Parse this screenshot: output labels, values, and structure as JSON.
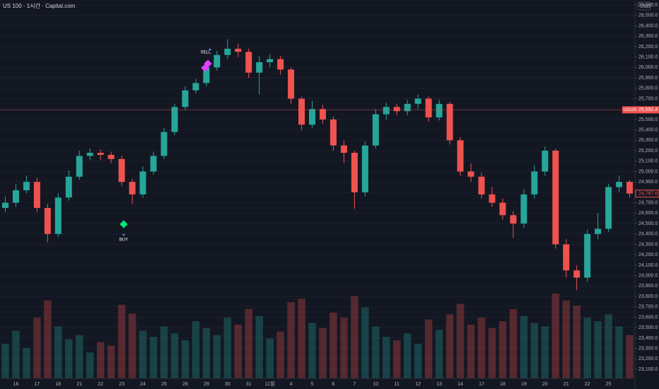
{
  "header": {
    "title": "US 100 · 1시간 · Capital.com",
    "currency": "USD"
  },
  "chart_data": {
    "type": "candlestick",
    "categories": [
      null,
      "16",
      null,
      "17",
      null,
      "18",
      null,
      "21",
      null,
      "22",
      null,
      "23",
      null,
      "24",
      null,
      "25",
      null,
      "28",
      null,
      "29",
      null,
      "30",
      null,
      "31",
      null,
      "11월",
      null,
      "4",
      null,
      "5",
      null,
      "6",
      null,
      "7",
      null,
      "10",
      null,
      "11",
      null,
      "12",
      null,
      "13",
      null,
      "14",
      null,
      "17",
      null,
      "18",
      null,
      "19",
      null,
      "20",
      null,
      "21",
      null,
      "22",
      null,
      "25",
      null,
      null
    ],
    "open": [
      24650,
      24700,
      24820,
      24900,
      24650,
      24400,
      24750,
      24950,
      25150,
      25180,
      25160,
      25120,
      24900,
      24780,
      25000,
      25150,
      25380,
      25620,
      25780,
      25850,
      26000,
      26120,
      26180,
      26150,
      25950,
      26050,
      26080,
      25980,
      25700,
      25450,
      25600,
      25500,
      25250,
      25180,
      24800,
      25250,
      25550,
      25620,
      25580,
      25650,
      25700,
      25520,
      25650,
      25300,
      25000,
      24950,
      24780,
      24700,
      24580,
      24500,
      24780,
      25000,
      25200,
      24300,
      24050,
      23980,
      24400,
      24450,
      24850,
      24900
    ],
    "high": [
      24760,
      24880,
      24960,
      24940,
      24690,
      24790,
      25010,
      25200,
      25220,
      25210,
      25190,
      25150,
      24930,
      25050,
      25190,
      25420,
      25650,
      25820,
      25890,
      26060,
      26160,
      26270,
      26230,
      26180,
      26110,
      26130,
      26110,
      26000,
      25720,
      25680,
      25640,
      25530,
      25300,
      25200,
      25290,
      25600,
      25660,
      25650,
      25690,
      25740,
      25720,
      25690,
      25670,
      25330,
      25080,
      24990,
      24850,
      24740,
      24620,
      24830,
      25060,
      25240,
      25220,
      24350,
      24100,
      24440,
      24600,
      24880,
      24960,
      24920
    ],
    "low": [
      24610,
      24660,
      24790,
      24610,
      24320,
      24370,
      24720,
      24920,
      25110,
      25110,
      25080,
      24860,
      24690,
      24750,
      24970,
      25120,
      25350,
      25590,
      25750,
      25820,
      25970,
      26080,
      26100,
      25900,
      25740,
      26000,
      25930,
      25650,
      25400,
      25420,
      25460,
      25200,
      25080,
      24640,
      24760,
      25220,
      25500,
      25540,
      25540,
      25600,
      25480,
      25490,
      25260,
      24960,
      24900,
      24740,
      24660,
      24540,
      24360,
      24460,
      24740,
      24960,
      24260,
      23980,
      23860,
      23940,
      24350,
      24420,
      24800,
      24750
    ],
    "close": [
      24700,
      24820,
      24900,
      24650,
      24400,
      24750,
      24950,
      25150,
      25180,
      25160,
      25120,
      24900,
      24780,
      25000,
      25150,
      25380,
      25620,
      25780,
      25850,
      26000,
      26120,
      26180,
      26150,
      25950,
      26050,
      26080,
      25980,
      25700,
      25450,
      25600,
      25500,
      25250,
      25180,
      24800,
      25250,
      25550,
      25620,
      25580,
      25650,
      25700,
      25520,
      25650,
      25300,
      25000,
      24950,
      24780,
      24700,
      24580,
      24500,
      24780,
      25000,
      25200,
      24300,
      24050,
      23980,
      24400,
      24450,
      24850,
      24900,
      24787.6
    ],
    "volume": [
      40,
      55,
      35,
      70,
      90,
      60,
      45,
      50,
      30,
      42,
      38,
      85,
      75,
      55,
      48,
      60,
      52,
      44,
      66,
      58,
      50,
      70,
      62,
      80,
      72,
      46,
      54,
      88,
      92,
      64,
      58,
      76,
      70,
      95,
      82,
      60,
      48,
      44,
      52,
      40,
      68,
      56,
      74,
      86,
      62,
      70,
      58,
      66,
      80,
      72,
      64,
      60,
      98,
      90,
      84,
      70,
      66,
      74,
      60,
      50
    ],
    "up_color": "#26a69a",
    "down_color": "#ef5350",
    "ylim": [
      23012,
      26648
    ],
    "yticks": [
      {
        "value": 23100,
        "label": "23,100.0"
      },
      {
        "value": 23200,
        "label": "23,200.0"
      },
      {
        "value": 23300,
        "label": "23,300.0"
      },
      {
        "value": 23400,
        "label": "23,400.0"
      },
      {
        "value": 23500,
        "label": "23,500.0"
      },
      {
        "value": 23600,
        "label": "23,600.0"
      },
      {
        "value": 23700,
        "label": "23,700.0"
      },
      {
        "value": 23800,
        "label": "23,800.0"
      },
      {
        "value": 23900,
        "label": "23,900.0"
      },
      {
        "value": 24000,
        "label": "24,000.0"
      },
      {
        "value": 24100,
        "label": "24,100.0"
      },
      {
        "value": 24200,
        "label": "24,200.0"
      },
      {
        "value": 24300,
        "label": "24,300.0"
      },
      {
        "value": 24400,
        "label": "24,400.0"
      },
      {
        "value": 24500,
        "label": "24,500.0"
      },
      {
        "value": 24600,
        "label": "24,600.0"
      },
      {
        "value": 24700,
        "label": "24,700.0"
      },
      {
        "value": 24800,
        "label": "24,800.0"
      },
      {
        "value": 24900,
        "label": "24,900.0"
      },
      {
        "value": 25000,
        "label": "25,000.0"
      },
      {
        "value": 25100,
        "label": "25,100.0"
      },
      {
        "value": 25200,
        "label": "25,200.0"
      },
      {
        "value": 25300,
        "label": "25,300.0"
      },
      {
        "value": 25400,
        "label": "25,400.0"
      },
      {
        "value": 25500,
        "label": "25,500.0"
      },
      {
        "value": 25600,
        "label": "25,600.0"
      },
      {
        "value": 25700,
        "label": "25,700.0"
      },
      {
        "value": 25800,
        "label": "25,800.0"
      },
      {
        "value": 25900,
        "label": "25,900.0"
      },
      {
        "value": 26000,
        "label": "26,000.0"
      },
      {
        "value": 26100,
        "label": "26,100.0"
      },
      {
        "value": 26200,
        "label": "26,200.0"
      },
      {
        "value": 26300,
        "label": "26,300.0"
      },
      {
        "value": 26400,
        "label": "26,400.0"
      },
      {
        "value": 26500,
        "label": "26,500.0"
      },
      {
        "value": 26600,
        "label": "26,600.0"
      }
    ],
    "price_line": {
      "symbol": "US100",
      "value": 25592.4,
      "label": "25,592.4"
    },
    "last_close": {
      "value": 24787.6,
      "label": "24,787.6"
    },
    "signals": {
      "buy": "BUY",
      "sell": "SELL"
    }
  }
}
